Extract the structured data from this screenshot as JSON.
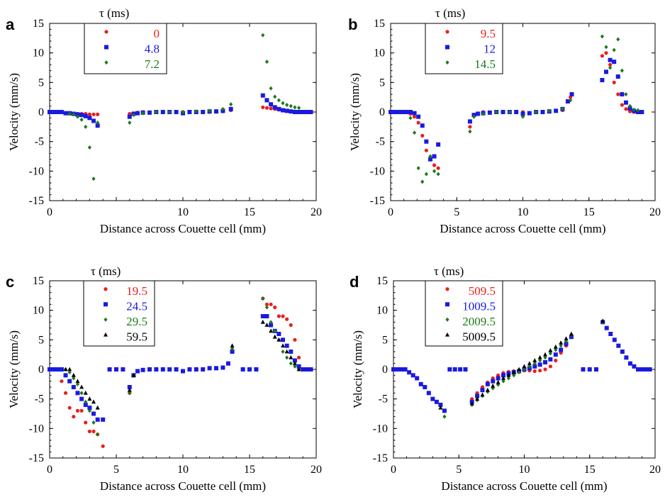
{
  "chart_data": [
    {
      "panel": "a",
      "type": "scatter",
      "xlabel": "Distance across Couette cell (mm)",
      "ylabel": "Velocity (mm/s)",
      "xlim": [
        0,
        20
      ],
      "ylim": [
        -15,
        15
      ],
      "xticks": [
        "0",
        "10",
        "15",
        "20"
      ],
      "yticks": [
        "15",
        "10",
        "5",
        "0",
        "-5",
        "-10",
        "-15"
      ],
      "legend_title": "τ (ms)",
      "series": [
        {
          "name": "0",
          "marker": "circle",
          "color": "#e8201e",
          "x": [
            0,
            0.3,
            0.6,
            0.9,
            1.2,
            1.5,
            1.8,
            2.1,
            2.4,
            2.7,
            3.0,
            3.3,
            3.6,
            6.0,
            6.3,
            6.6,
            7,
            8,
            9,
            10,
            11,
            12,
            13,
            13.6,
            16.0,
            16.3,
            16.6,
            16.9,
            17.2,
            17.5,
            17.8,
            18.1,
            18.4,
            18.7,
            19.0,
            19.3,
            19.6
          ],
          "y": [
            0,
            0,
            0,
            0,
            -0.2,
            -0.2,
            -0.3,
            -0.3,
            -0.3,
            -0.3,
            -0.4,
            -0.4,
            -0.4,
            -0.3,
            -0.2,
            -0.1,
            0,
            0,
            0,
            0,
            0,
            0,
            0.1,
            0.3,
            0.8,
            0.7,
            0.6,
            0.5,
            0.4,
            0.3,
            0.2,
            0.1,
            0.1,
            0,
            0,
            0,
            0
          ]
        },
        {
          "name": "4.8",
          "marker": "square",
          "color": "#1a1adf",
          "x": [
            0,
            0.3,
            0.6,
            0.9,
            1.2,
            1.5,
            1.8,
            2.1,
            2.4,
            2.7,
            3.0,
            3.3,
            3.6,
            6.0,
            6.3,
            6.6,
            7,
            7.5,
            8,
            8.5,
            9,
            9.5,
            10,
            10.5,
            11,
            11.5,
            12,
            12.5,
            13,
            13.6,
            16.0,
            16.3,
            16.6,
            16.9,
            17.2,
            17.5,
            17.8,
            18.1,
            18.4,
            18.7,
            19.0,
            19.3,
            19.6
          ],
          "y": [
            0,
            0,
            0,
            0,
            -0.2,
            -0.2,
            -0.3,
            -0.4,
            -0.5,
            -0.7,
            -1.0,
            -1.5,
            -2.3,
            -0.8,
            -0.3,
            -0.2,
            -0.1,
            -0.1,
            0,
            0,
            0,
            0,
            -0.2,
            0,
            0,
            0,
            0.1,
            0.1,
            0.2,
            0.5,
            2.8,
            2.0,
            1.3,
            0.8,
            0.5,
            0.3,
            0.2,
            0.1,
            0,
            0,
            0,
            0,
            0
          ]
        },
        {
          "name": "7.2",
          "marker": "diamond",
          "color": "#1c7a1c",
          "x": [
            1.5,
            1.8,
            2.1,
            2.4,
            2.7,
            3.0,
            3.3,
            3.6,
            6.0,
            6.3,
            7,
            8,
            9,
            10,
            11,
            12,
            13,
            13.6,
            16.0,
            16.3,
            16.6,
            16.9,
            17.2,
            17.5,
            17.8,
            18.1,
            18.4,
            18.7
          ],
          "y": [
            -0.3,
            -0.4,
            -0.8,
            -1.3,
            -2.5,
            -6.0,
            -11.3,
            -1.8,
            -1.8,
            -0.5,
            -0.2,
            0,
            0,
            0,
            0.1,
            0.2,
            0.5,
            1.3,
            13.0,
            8.5,
            4.0,
            2.6,
            2.0,
            1.5,
            1.2,
            1.0,
            0.8,
            0.7
          ]
        }
      ]
    },
    {
      "panel": "b",
      "type": "scatter",
      "xlabel": "Distance across Couette cell (mm)",
      "ylabel": "Velocity (mm/s)",
      "xlim": [
        0,
        20
      ],
      "ylim": [
        -15,
        15
      ],
      "xticks": [
        "0",
        "5",
        "10",
        "15",
        "20"
      ],
      "yticks": [
        "15",
        "10",
        "5",
        "0",
        "-5",
        "-10",
        "-15"
      ],
      "legend_title": "τ (ms)",
      "series": [
        {
          "name": "9.5",
          "marker": "circle",
          "color": "#e8201e",
          "x": [
            0,
            0.3,
            0.6,
            0.9,
            1.2,
            1.5,
            1.8,
            2.1,
            2.4,
            2.7,
            3.0,
            3.3,
            3.6,
            6.0,
            6.3,
            6.6,
            7,
            8,
            9,
            10,
            11,
            12,
            13,
            13.6,
            16.0,
            16.3,
            16.6,
            16.9,
            17.2,
            17.5,
            17.8,
            18.1,
            18.4,
            18.7
          ],
          "y": [
            0,
            0,
            0,
            0,
            0,
            -0.3,
            -0.8,
            -1.8,
            -4.0,
            -6.5,
            -8.0,
            -9.0,
            -9.5,
            -2.5,
            -0.5,
            -0.2,
            0,
            0,
            0,
            0,
            0,
            0.1,
            0.3,
            2.5,
            9.5,
            10.0,
            8.0,
            5.0,
            3.0,
            1.2,
            0.5,
            0.1,
            0,
            0
          ]
        },
        {
          "name": "12",
          "marker": "square",
          "color": "#1a1adf",
          "x": [
            0,
            0.3,
            0.6,
            0.9,
            1.2,
            1.5,
            1.8,
            2.1,
            2.4,
            2.7,
            3.0,
            3.3,
            3.6,
            6.0,
            6.3,
            6.6,
            7,
            7.5,
            8,
            8.5,
            9,
            9.5,
            10,
            10.5,
            11,
            11.5,
            12,
            12.5,
            13,
            13.4,
            13.7,
            16.0,
            16.3,
            16.6,
            16.9,
            17.2,
            17.5,
            17.8,
            18.1,
            18.4,
            18.7,
            19.0
          ],
          "y": [
            0,
            0,
            0,
            0,
            0,
            0,
            -0.2,
            -0.8,
            -2.3,
            -5.0,
            -8.0,
            -7.5,
            -5.5,
            -1.6,
            -0.5,
            -0.3,
            -0.2,
            -0.1,
            0,
            0,
            0,
            0,
            -0.3,
            -0.2,
            0,
            0,
            0.1,
            0.2,
            0.5,
            1.8,
            3.0,
            5.4,
            6.8,
            8.8,
            8.5,
            6.0,
            3.0,
            1.6,
            0.6,
            0.2,
            0,
            0
          ]
        },
        {
          "name": "14.5",
          "marker": "diamond",
          "color": "#1c7a1c",
          "x": [
            1.5,
            1.8,
            2.1,
            2.4,
            2.7,
            3.0,
            3.3,
            3.6,
            6.0,
            6.3,
            7,
            8,
            9,
            10,
            11,
            12,
            13,
            13.6,
            16.0,
            16.3,
            16.6,
            16.9,
            17.2,
            17.5,
            17.8,
            18.1,
            18.4,
            18.7
          ],
          "y": [
            -1.0,
            -3.5,
            -9.5,
            -11.8,
            -10.5,
            -7.5,
            -10.0,
            -10.5,
            -3.3,
            -0.8,
            -0.3,
            0,
            0,
            -0.8,
            0,
            0.2,
            0.5,
            2.0,
            12.8,
            11.0,
            7.5,
            10.5,
            12.3,
            7.0,
            3.0,
            1.0,
            0.4,
            0.3
          ]
        }
      ]
    },
    {
      "panel": "c",
      "type": "scatter",
      "xlabel": "Distance across Couette cell (mm)",
      "ylabel": "Velocity (mm/s)",
      "xlim": [
        0,
        20
      ],
      "ylim": [
        -15,
        15
      ],
      "xticks": [
        "0",
        "5",
        "10",
        "15",
        "20"
      ],
      "yticks": [
        "15",
        "10",
        "5",
        "0",
        "-5",
        "-10",
        "-15"
      ],
      "legend_title": "τ (ms)",
      "series": [
        {
          "name": "19.5",
          "marker": "circle",
          "color": "#e8201e",
          "x": [
            0.9,
            1.2,
            1.5,
            1.8,
            2.1,
            2.4,
            2.7,
            3.0,
            3.3,
            3.6,
            4.0,
            6.0,
            6.3,
            16.0,
            16.3,
            16.6,
            16.9,
            17.2,
            17.5,
            17.8,
            18.1,
            18.4,
            18.7
          ],
          "y": [
            -2.0,
            -4.0,
            -6.5,
            -8.0,
            -7.0,
            -7.0,
            -9.0,
            -10.5,
            -10.5,
            -11.0,
            -13.0,
            -4.0,
            -1.0,
            12.0,
            11.0,
            11.0,
            10.5,
            9.0,
            9.0,
            8.5,
            7.5,
            5.0,
            2.0
          ]
        },
        {
          "name": "24.5",
          "marker": "square",
          "color": "#1a1adf",
          "x": [
            0,
            0.3,
            0.6,
            0.9,
            1.2,
            1.5,
            1.8,
            2.1,
            2.4,
            2.7,
            3.0,
            3.3,
            3.6,
            4.0,
            4.5,
            5,
            5.5,
            6.0,
            6.3,
            6.6,
            7,
            7.5,
            8,
            8.5,
            9,
            9.5,
            10,
            10.5,
            11,
            11.5,
            12,
            12.5,
            13,
            13.4,
            13.7,
            14.5,
            15,
            15.5,
            16.0,
            16.3,
            16.6,
            16.9,
            17.2,
            17.5,
            17.8,
            18.1,
            18.4,
            18.7,
            19.0,
            19.3,
            19.6
          ],
          "y": [
            0,
            0,
            0,
            0,
            -1.0,
            -2.0,
            -3.0,
            -4.0,
            -5.0,
            -6.0,
            -6.5,
            -7.5,
            -8.5,
            -8.5,
            0,
            0,
            0,
            -3.0,
            -1.0,
            -0.3,
            -0.1,
            0,
            0,
            0,
            0,
            0,
            -0.3,
            0,
            0,
            0,
            0.2,
            0.2,
            0.3,
            1.0,
            3.0,
            0,
            0,
            0,
            9.0,
            9.0,
            7.5,
            6.5,
            6.0,
            5.0,
            4.0,
            3.0,
            1.5,
            0.5,
            0,
            0,
            0
          ]
        },
        {
          "name": "29.5",
          "marker": "diamond",
          "color": "#1c7a1c",
          "x": [
            1.2,
            1.5,
            1.8,
            2.1,
            2.4,
            2.7,
            3.0,
            3.3,
            3.6,
            6.0,
            6.3,
            13.7,
            16.0,
            16.3,
            16.6,
            16.9,
            17.2,
            17.5,
            17.8,
            18.1,
            18.4,
            18.7
          ],
          "y": [
            0,
            -0.5,
            -1.5,
            -2.5,
            -4.0,
            -5.5,
            -7.0,
            -9.0,
            -11.0,
            -4.0,
            -1.0,
            3.5,
            12.0,
            10.5,
            8.0,
            6.5,
            5.0,
            3.0,
            2.0,
            1.0,
            0.5,
            0
          ]
        },
        {
          "name": "59.5",
          "marker": "triangle",
          "color": "#000000",
          "x": [
            1.2,
            1.5,
            1.8,
            2.1,
            2.4,
            2.7,
            3.0,
            3.3,
            3.6,
            6.0,
            6.3,
            13.7,
            16.0,
            16.3,
            16.6,
            16.9,
            17.2,
            17.5,
            17.8,
            18.1,
            18.4,
            18.7
          ],
          "y": [
            0,
            0,
            -1.0,
            -2.0,
            -3.0,
            -4.0,
            -5.0,
            -5.5,
            -6.5,
            -3.5,
            -1.0,
            4.0,
            8.0,
            7.5,
            6.5,
            5.5,
            5.0,
            4.0,
            3.0,
            2.0,
            1.0,
            0
          ]
        }
      ]
    },
    {
      "panel": "d",
      "type": "scatter",
      "xlabel": "Distance across Couette cell (mm)",
      "ylabel": "Velocity (mm/s)",
      "xlim": [
        0,
        20
      ],
      "ylim": [
        -15,
        15
      ],
      "xticks": [
        "0",
        "5",
        "10",
        "15",
        "20"
      ],
      "yticks": [
        "15",
        "10",
        "5",
        "0",
        "-5",
        "-10",
        "-15"
      ],
      "legend_title": "τ (ms)",
      "series": [
        {
          "name": "509.5",
          "marker": "circle",
          "color": "#e8201e",
          "x": [
            6.0,
            6.4,
            6.8,
            7.2,
            7.6,
            8.0,
            8.4,
            8.8,
            9.2,
            9.6,
            10.0,
            10.4,
            10.8,
            11.2,
            11.6,
            12.0,
            12.4,
            12.8,
            13.2,
            13.6
          ],
          "y": [
            -5.0,
            -4.0,
            -3.0,
            -2.2,
            -1.5,
            -1.0,
            -0.6,
            -0.4,
            -0.3,
            -0.2,
            -0.2,
            -0.2,
            -0.3,
            -0.2,
            0,
            0.5,
            1.5,
            2.8,
            4.0,
            5.5
          ]
        },
        {
          "name": "1009.5",
          "marker": "square",
          "color": "#1a1adf",
          "x": [
            0,
            0.3,
            0.6,
            0.9,
            1.2,
            1.5,
            1.8,
            2.1,
            2.4,
            2.7,
            3.0,
            3.3,
            3.6,
            3.9,
            4.3,
            4.7,
            5.1,
            5.5,
            6.0,
            6.4,
            6.8,
            7.2,
            7.6,
            8.0,
            8.4,
            8.8,
            9.2,
            9.6,
            10.0,
            10.4,
            10.8,
            11.2,
            11.6,
            12.0,
            12.4,
            12.8,
            13.2,
            13.6,
            14.5,
            15.0,
            15.5,
            16.0,
            16.3,
            16.6,
            16.9,
            17.2,
            17.5,
            17.8,
            18.1,
            18.4,
            18.7,
            19.0,
            19.3,
            19.6
          ],
          "y": [
            0,
            0,
            0,
            0,
            -0.5,
            -1.0,
            -1.5,
            -2.5,
            -3.0,
            -4.0,
            -5.0,
            -5.5,
            -6.0,
            -7.0,
            0,
            0,
            0,
            0,
            -5.5,
            -4.5,
            -3.5,
            -2.5,
            -2.0,
            -1.5,
            -1.0,
            -0.7,
            -0.5,
            -0.3,
            0,
            0.2,
            0.5,
            0.8,
            1.2,
            1.7,
            2.5,
            3.3,
            4.3,
            5.5,
            0,
            0,
            0,
            8.0,
            7.0,
            6.0,
            5.0,
            4.0,
            3.0,
            2.0,
            1.0,
            0.5,
            0,
            0,
            0,
            0
          ]
        },
        {
          "name": "2009.5",
          "marker": "diamond",
          "color": "#1c7a1c",
          "x": [
            3.9,
            6.0,
            6.4,
            6.8,
            7.2,
            7.6,
            8.0,
            8.4,
            8.8,
            9.2,
            9.6,
            10.0,
            10.4,
            10.8,
            11.2,
            11.6,
            12.0,
            12.4,
            12.8,
            13.2,
            13.6,
            16.0
          ],
          "y": [
            -8.0,
            -6.0,
            -5.2,
            -4.5,
            -3.8,
            -3.2,
            -2.6,
            -2.0,
            -1.5,
            -1.0,
            -0.5,
            0,
            0.5,
            1.0,
            1.5,
            2.0,
            2.7,
            3.3,
            4.0,
            4.7,
            5.8,
            8.0
          ]
        },
        {
          "name": "5009.5",
          "marker": "triangle",
          "color": "#000000",
          "x": [
            3.6,
            6.0,
            6.4,
            6.8,
            7.2,
            7.6,
            8.0,
            8.4,
            8.8,
            9.2,
            9.6,
            10.0,
            10.4,
            10.8,
            11.2,
            11.6,
            12.0,
            12.4,
            12.8,
            13.2,
            13.6,
            16.0
          ],
          "y": [
            -6.5,
            -5.8,
            -5.0,
            -4.3,
            -3.5,
            -2.8,
            -2.2,
            -1.5,
            -1.0,
            -0.5,
            0,
            0.5,
            1.0,
            1.5,
            2.0,
            2.5,
            3.2,
            3.8,
            4.5,
            5.2,
            6.0,
            8.2
          ]
        }
      ]
    }
  ]
}
